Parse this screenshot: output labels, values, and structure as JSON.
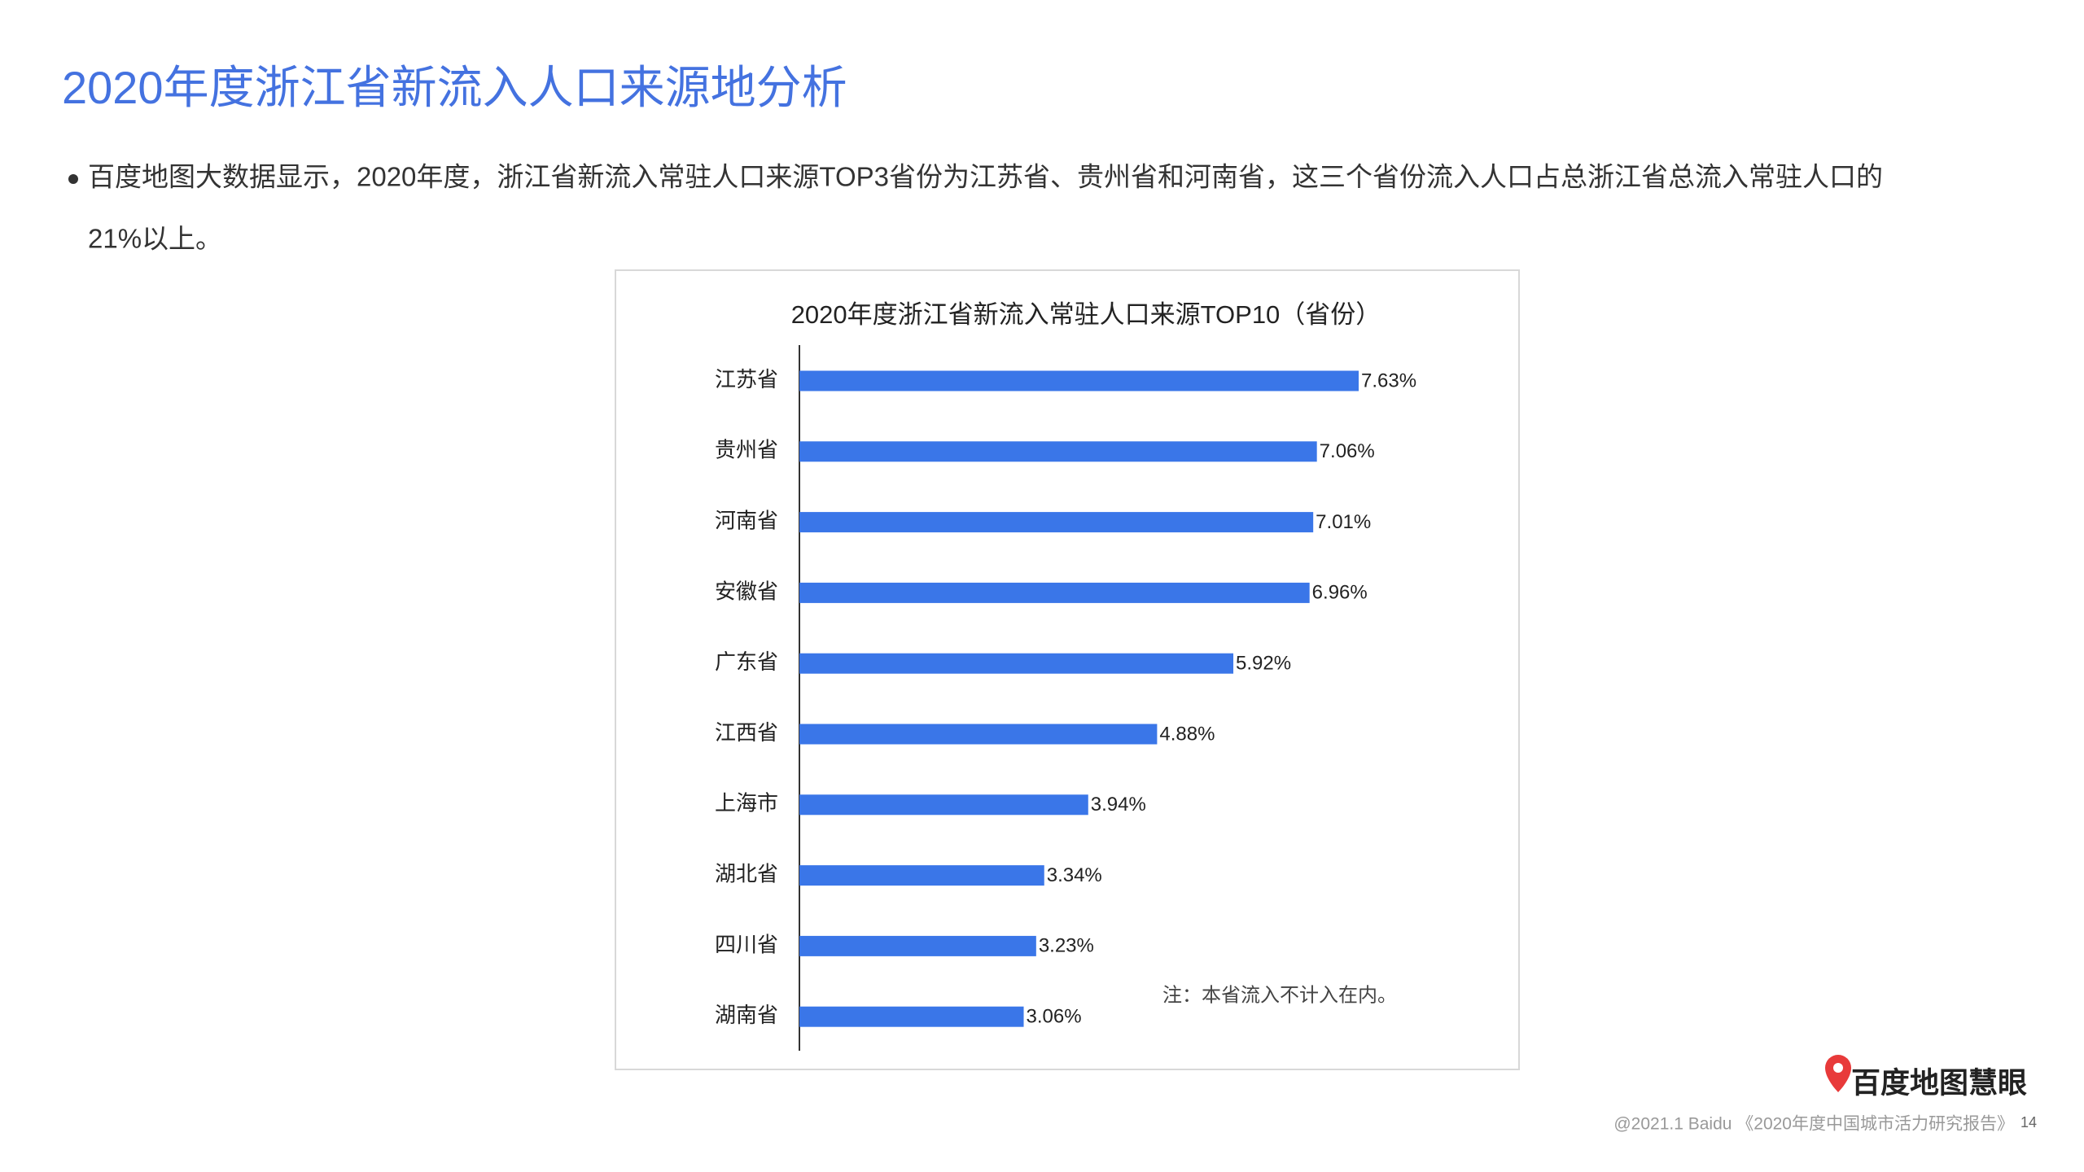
{
  "header": {
    "title": "2020年度浙江省新流入人口来源地分析"
  },
  "bullet": [
    "百度地图大数据显示，2020年度，浙江省新流入常驻人口来源TOP3省份为江苏省、贵州省和河南省，这三个省份流入人口占总浙江省总流入常驻人口的",
    "21%以上。"
  ],
  "chart_data": {
    "type": "hbar",
    "title": "2020年度浙江省新流入常驻人口来源TOP10（省份）",
    "categories": [
      "江苏省",
      "贵州省",
      "河南省",
      "安徽省",
      "广东省",
      "江西省",
      "上海市",
      "湖北省",
      "四川省",
      "湖南省"
    ],
    "values": [
      7.63,
      7.06,
      7.01,
      6.96,
      5.92,
      4.88,
      3.94,
      3.34,
      3.23,
      3.06
    ],
    "value_labels": [
      "7.63%",
      "7.06%",
      "7.01%",
      "6.96%",
      "5.92%",
      "4.88%",
      "3.94%",
      "3.34%",
      "3.23%",
      "3.06%"
    ],
    "color": "#3a76e8",
    "note": "注：本省流入不计入在内。"
  },
  "footer": {
    "logo": "百度地图慧眼",
    "source": "@2021.1 Baidu 《2020年度中国城市活力研究报告》",
    "page": "14"
  }
}
